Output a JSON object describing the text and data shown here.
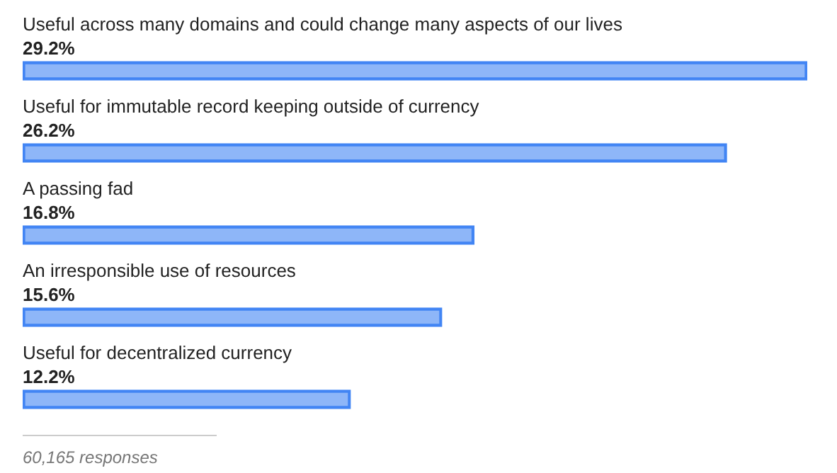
{
  "chart_data": {
    "type": "bar",
    "orientation": "horizontal",
    "categories": [
      "Useful across many domains and could change many aspects of our lives",
      "Useful for immutable record keeping outside of currency",
      "A passing fad",
      "An irresponsible use of resources",
      "Useful for decentralized currency"
    ],
    "values": [
      29.2,
      26.2,
      16.8,
      15.6,
      12.2
    ],
    "value_labels": [
      "29.2%",
      "26.2%",
      "16.8%",
      "15.6%",
      "12.2%"
    ],
    "color": "#4285f4",
    "annotations": [
      "60,165 responses"
    ],
    "legend": false
  }
}
